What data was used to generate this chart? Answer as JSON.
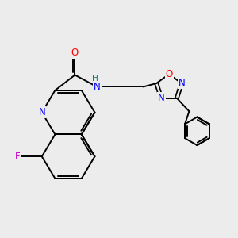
{
  "bg_color": "#ececec",
  "bond_color": "#000000",
  "bond_width": 1.5,
  "atom_colors": {
    "N": "#0000ff",
    "O": "#ff0000",
    "F": "#cc00cc",
    "H": "#008080",
    "C": "#000000"
  },
  "font_size": 8.5,
  "lw": 1.4
}
